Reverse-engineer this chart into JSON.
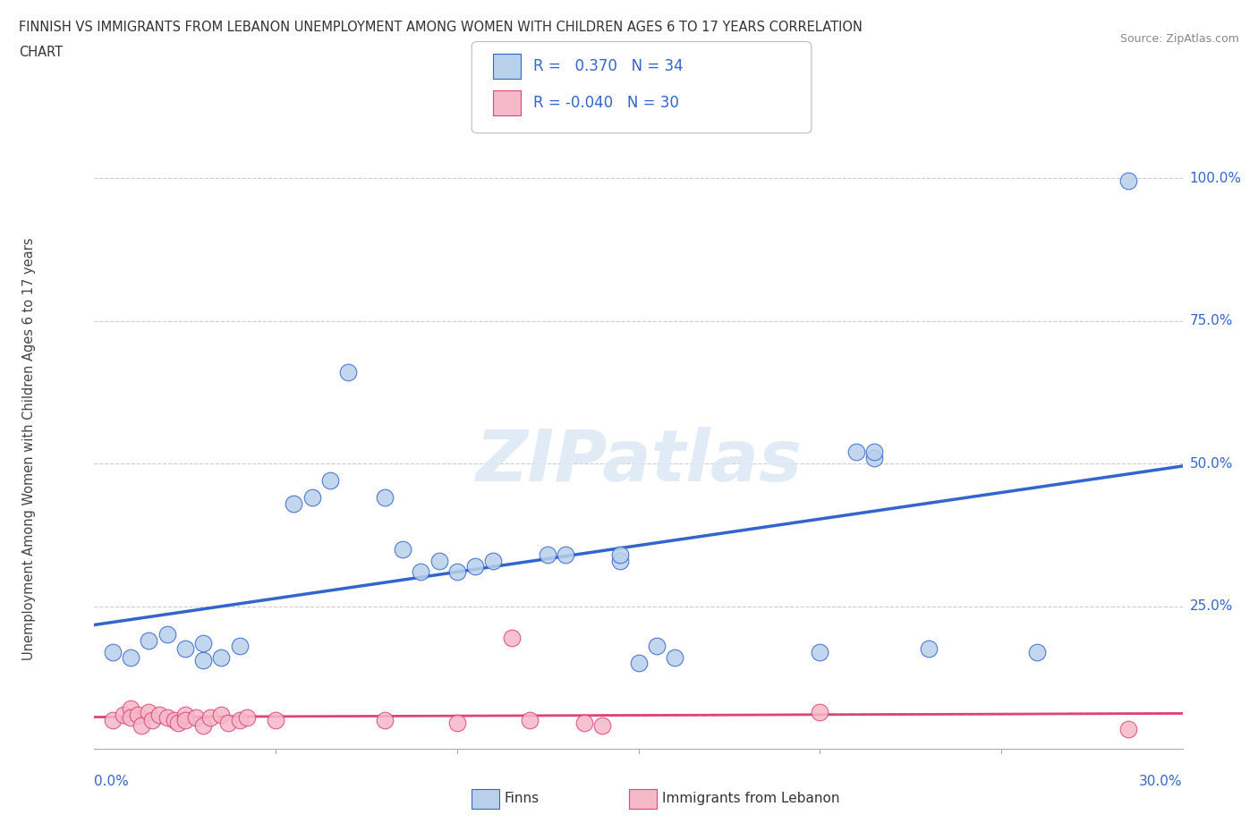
{
  "title_line1": "FINNISH VS IMMIGRANTS FROM LEBANON UNEMPLOYMENT AMONG WOMEN WITH CHILDREN AGES 6 TO 17 YEARS CORRELATION",
  "title_line2": "CHART",
  "source": "Source: ZipAtlas.com",
  "ylabel": "Unemployment Among Women with Children Ages 6 to 17 years",
  "xlim": [
    0.0,
    0.3
  ],
  "ylim": [
    0.0,
    1.05
  ],
  "legend_r_finns": "0.370",
  "legend_n_finns": "34",
  "legend_r_lebanon": "-0.040",
  "legend_n_lebanon": "30",
  "color_finns": "#b8d0ea",
  "color_lebanon": "#f5b8c8",
  "color_trendline_finns": "#3366cc",
  "color_trendline_lebanon": "#dd4477",
  "watermark_text": "ZIPatlas",
  "background_color": "#ffffff",
  "grid_color": "#cccccc",
  "finns_x": [
    0.005,
    0.01,
    0.015,
    0.02,
    0.025,
    0.03,
    0.03,
    0.035,
    0.04,
    0.055,
    0.06,
    0.065,
    0.07,
    0.08,
    0.085,
    0.09,
    0.095,
    0.1,
    0.105,
    0.11,
    0.125,
    0.13,
    0.145,
    0.145,
    0.15,
    0.155,
    0.16,
    0.2,
    0.21,
    0.215,
    0.215,
    0.23,
    0.26,
    0.285
  ],
  "finns_y": [
    0.17,
    0.16,
    0.19,
    0.2,
    0.175,
    0.155,
    0.185,
    0.16,
    0.18,
    0.43,
    0.44,
    0.47,
    0.66,
    0.44,
    0.35,
    0.31,
    0.33,
    0.31,
    0.32,
    0.33,
    0.34,
    0.34,
    0.33,
    0.34,
    0.15,
    0.18,
    0.16,
    0.17,
    0.52,
    0.51,
    0.52,
    0.175,
    0.17,
    0.995
  ],
  "lebanon_x": [
    0.005,
    0.008,
    0.01,
    0.01,
    0.012,
    0.013,
    0.015,
    0.016,
    0.018,
    0.02,
    0.022,
    0.023,
    0.025,
    0.025,
    0.028,
    0.03,
    0.032,
    0.035,
    0.037,
    0.04,
    0.042,
    0.05,
    0.08,
    0.1,
    0.115,
    0.12,
    0.135,
    0.14,
    0.2,
    0.285
  ],
  "lebanon_y": [
    0.05,
    0.06,
    0.07,
    0.055,
    0.06,
    0.04,
    0.065,
    0.05,
    0.06,
    0.055,
    0.05,
    0.045,
    0.06,
    0.05,
    0.055,
    0.04,
    0.055,
    0.06,
    0.045,
    0.05,
    0.055,
    0.05,
    0.05,
    0.045,
    0.195,
    0.05,
    0.045,
    0.04,
    0.065,
    0.035
  ]
}
